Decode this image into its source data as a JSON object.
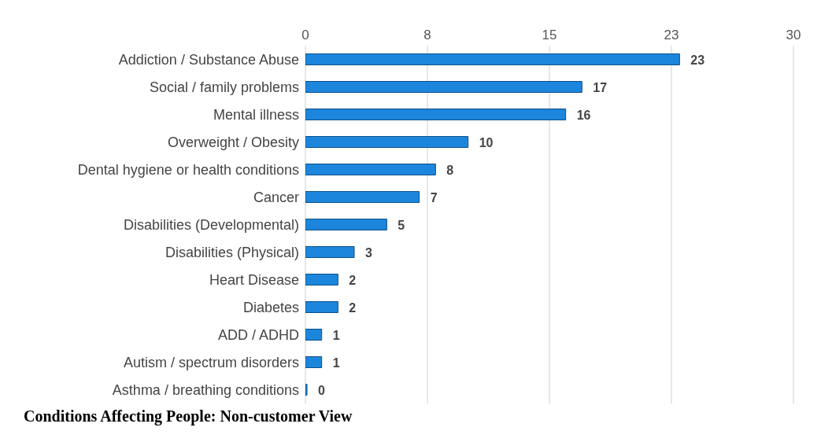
{
  "chart_data": {
    "type": "bar",
    "orientation": "horizontal",
    "title": "Conditions Affecting People: Non-customer View",
    "categories": [
      "Addiction / Substance Abuse",
      "Social / family problems",
      "Mental illness",
      "Overweight / Obesity",
      "Dental hygiene or health conditions",
      "Cancer",
      "Disabilities (Developmental)",
      "Disabilities (Physical)",
      "Heart Disease",
      "Diabetes",
      "ADD / ADHD",
      "Autism / spectrum disorders",
      "Asthma / breathing conditions"
    ],
    "values": [
      23,
      17,
      16,
      10,
      8,
      7,
      5,
      3,
      2,
      2,
      1,
      1,
      0
    ],
    "color": "#1c86dc",
    "xlim": [
      0,
      30
    ],
    "xticks": [
      0,
      {
        "value": 7.5,
        "label": "8"
      },
      15,
      {
        "value": 22.5,
        "label": "23"
      },
      30
    ],
    "grid": "x",
    "data_labels": true,
    "legend": false
  }
}
